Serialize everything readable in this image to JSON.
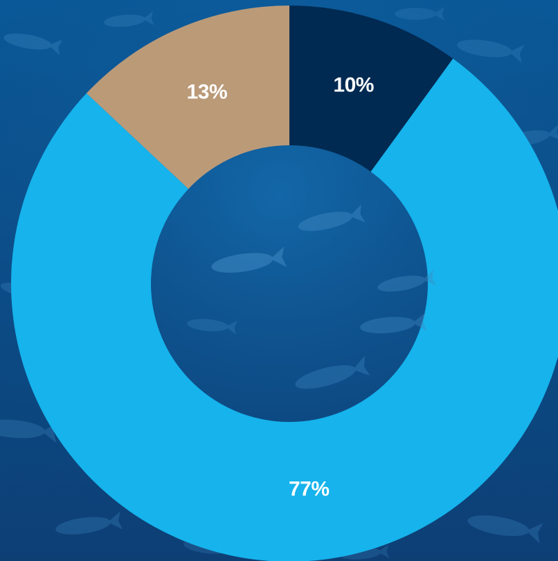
{
  "chart_data": {
    "type": "pie",
    "variant": "donut",
    "slices": [
      {
        "label": "10%",
        "value": 10,
        "color": "#002a52"
      },
      {
        "label": "77%",
        "value": 77,
        "color": "#16b3ec"
      },
      {
        "label": "13%",
        "value": 13,
        "color": "#bb9a78"
      }
    ],
    "start_angle_deg": 0,
    "direction": "clockwise",
    "background": {
      "description_color_top": "#0a5a9a",
      "description_color_bottom": "#0d3f75",
      "fish_color": "#3f8ac4"
    },
    "legend": false
  }
}
